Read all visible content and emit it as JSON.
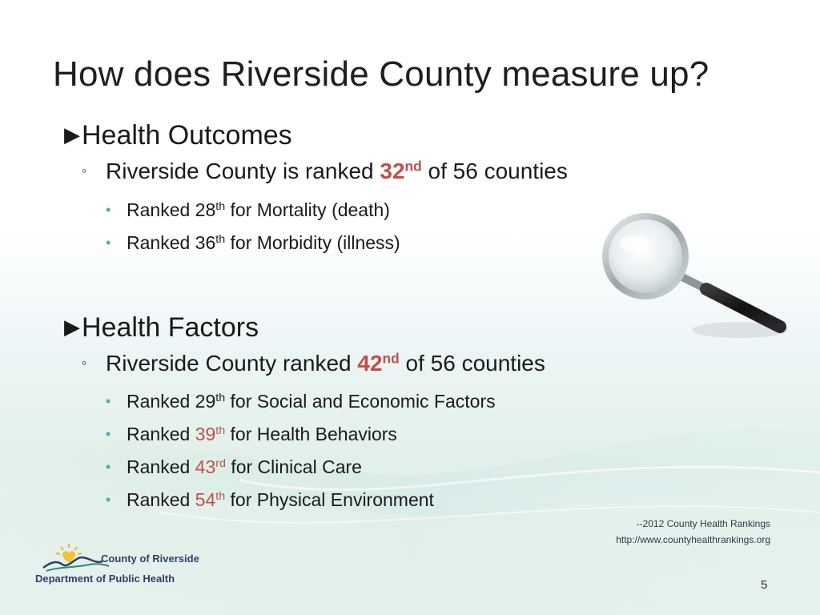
{
  "slide": {
    "title": "How does Riverside County measure up?",
    "page_number": "5"
  },
  "sections": {
    "outcomes": {
      "heading": "Health Outcomes",
      "summary_pre": "Riverside County is ranked ",
      "rank": "32",
      "rank_suffix": "nd",
      "summary_post": " of 56 counties",
      "items": [
        {
          "pre": "Ranked ",
          "num": "28",
          "suffix": "th",
          "post": " for Mortality (death)"
        },
        {
          "pre": "Ranked ",
          "num": "36",
          "suffix": "th",
          "post": " for Morbidity (illness)"
        }
      ]
    },
    "factors": {
      "heading": "Health Factors",
      "summary_pre": "Riverside County ranked ",
      "rank": "42",
      "rank_suffix": "nd",
      "summary_post": " of 56 counties",
      "items": [
        {
          "pre": "Ranked ",
          "num": "29",
          "suffix": "th",
          "post": " for Social and Economic Factors"
        },
        {
          "pre": "Ranked ",
          "num": "39",
          "suffix": "th",
          "post": " for Health Behaviors"
        },
        {
          "pre": "Ranked ",
          "num": "43",
          "suffix": "rd",
          "post": " for Clinical Care"
        },
        {
          "pre": "Ranked ",
          "num": "54",
          "suffix": "th",
          "post": " for Physical Environment"
        }
      ]
    }
  },
  "source": {
    "line1": "--2012 County Health Rankings",
    "line2": "http://www.countyhealthrankings.org"
  },
  "logo": {
    "line1": "County of Riverside",
    "line2": "Department of Public Health"
  },
  "colors": {
    "highlight": "#c0504d",
    "bullet": "#5aa4b8"
  },
  "icons": {
    "level1": "triangle-right",
    "level2": "hollow-circle",
    "level3": "filled-dot",
    "image": "magnifying-glass"
  }
}
